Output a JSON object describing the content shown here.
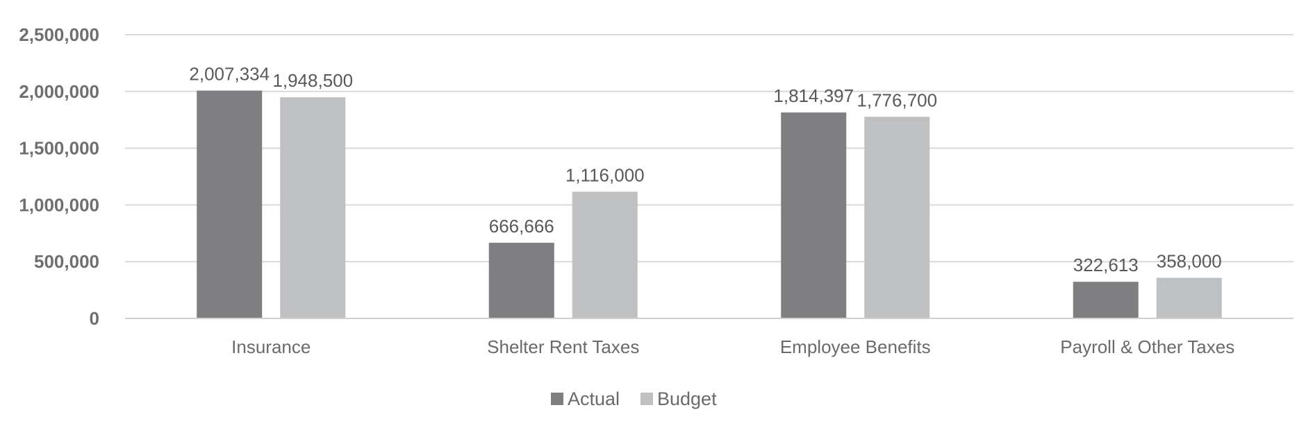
{
  "chart_data": {
    "type": "bar",
    "title": "",
    "xlabel": "",
    "ylabel": "",
    "categories": [
      "Insurance",
      "Shelter Rent Taxes",
      "Employee Benefits",
      "Payroll & Other Taxes"
    ],
    "series": [
      {
        "name": "Actual",
        "values": [
          2007334,
          666666,
          1814397,
          322613
        ],
        "labels": [
          "2,007,334",
          "666,666",
          "1,814,397",
          "322,613"
        ],
        "color": "#7f7f82"
      },
      {
        "name": "Budget",
        "values": [
          1948500,
          1116000,
          1776700,
          358000
        ],
        "labels": [
          "1,948,500",
          "1,116,000",
          "1,776,700",
          "358,000"
        ],
        "color": "#bfc0c2"
      }
    ],
    "ylim": [
      0,
      2500000
    ],
    "yticks": [
      0,
      500000,
      1000000,
      1500000,
      2000000,
      2500000
    ],
    "ytick_labels": [
      "0",
      "500,000",
      "1,000,000",
      "1,500,000",
      "2,000,000",
      "2,500,000"
    ],
    "grid": true,
    "legend_position": "bottom-center",
    "gridline_color": "#d9d9d9",
    "axis_color": "#d0d0d0"
  }
}
